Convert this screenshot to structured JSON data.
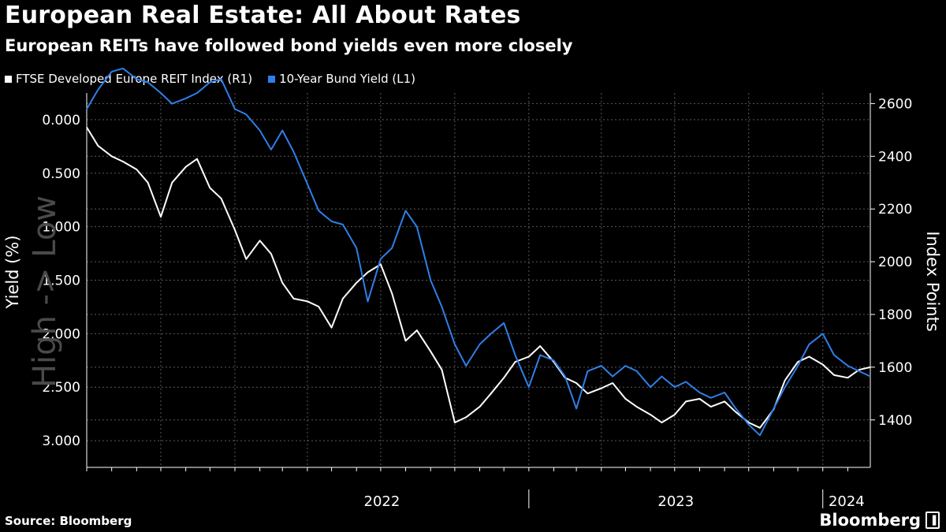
{
  "title": "European Real Estate: All About Rates",
  "subtitle": "European REITs have followed bond yields even more closely",
  "legend": [
    {
      "label": "FTSE Developed Europe REIT Index (R1)",
      "color": "#ffffff"
    },
    {
      "label": "10-Year Bund Yield (L1)",
      "color": "#2f7fe8"
    }
  ],
  "source": "Source: Bloomberg",
  "brand": "Bloomberg",
  "chart_data": {
    "type": "line",
    "x_range": [
      "2021-07-01",
      "2024-02-29"
    ],
    "x_labels": [
      {
        "label": "2022",
        "date": "2022-01-01"
      },
      {
        "label": "2023",
        "date": "2023-01-01"
      },
      {
        "label": "2024",
        "date": "2024-01-01"
      }
    ],
    "left_axis": {
      "label": "Yield (%)",
      "inverted": true,
      "annotation": "High -> Low",
      "ylim": [
        -0.25,
        3.25
      ],
      "ticks": [
        0,
        0.5,
        1,
        1.5,
        2,
        2.5,
        3
      ],
      "tick_labels": [
        "0.000",
        "0.500",
        "1.000",
        "1.500",
        "2.000",
        "2.500",
        "3.000"
      ]
    },
    "right_axis": {
      "label": "Index Points",
      "ylim": [
        1220,
        2640
      ],
      "ticks": [
        1400,
        1600,
        1800,
        2000,
        2200,
        2400,
        2600
      ],
      "tick_labels": [
        "1400",
        "1600",
        "1800",
        "2000",
        "2200",
        "2400",
        "2600"
      ]
    },
    "grid": true,
    "series": [
      {
        "name": "FTSE Developed Europe REIT Index (R1)",
        "axis": "right",
        "color": "#ffffff",
        "points": [
          [
            "2021-07-01",
            2510
          ],
          [
            "2021-07-15",
            2440
          ],
          [
            "2021-08-01",
            2400
          ],
          [
            "2021-08-15",
            2380
          ],
          [
            "2021-09-01",
            2350
          ],
          [
            "2021-09-15",
            2300
          ],
          [
            "2021-10-01",
            2170
          ],
          [
            "2021-10-15",
            2300
          ],
          [
            "2021-11-01",
            2360
          ],
          [
            "2021-11-15",
            2390
          ],
          [
            "2021-12-01",
            2280
          ],
          [
            "2021-12-15",
            2240
          ],
          [
            "2022-01-01",
            2120
          ],
          [
            "2022-01-15",
            2010
          ],
          [
            "2022-02-01",
            2080
          ],
          [
            "2022-02-15",
            2030
          ],
          [
            "2022-03-01",
            1920
          ],
          [
            "2022-03-15",
            1860
          ],
          [
            "2022-04-01",
            1850
          ],
          [
            "2022-04-15",
            1830
          ],
          [
            "2022-05-01",
            1750
          ],
          [
            "2022-05-15",
            1860
          ],
          [
            "2022-06-01",
            1920
          ],
          [
            "2022-06-15",
            1960
          ],
          [
            "2022-07-01",
            1990
          ],
          [
            "2022-07-15",
            1880
          ],
          [
            "2022-08-01",
            1700
          ],
          [
            "2022-08-15",
            1740
          ],
          [
            "2022-09-01",
            1660
          ],
          [
            "2022-09-15",
            1590
          ],
          [
            "2022-10-01",
            1390
          ],
          [
            "2022-10-15",
            1410
          ],
          [
            "2022-11-01",
            1450
          ],
          [
            "2022-11-15",
            1500
          ],
          [
            "2022-12-01",
            1560
          ],
          [
            "2022-12-15",
            1620
          ],
          [
            "2023-01-01",
            1640
          ],
          [
            "2023-01-15",
            1680
          ],
          [
            "2023-02-01",
            1620
          ],
          [
            "2023-02-15",
            1560
          ],
          [
            "2023-03-01",
            1540
          ],
          [
            "2023-03-15",
            1500
          ],
          [
            "2023-04-01",
            1520
          ],
          [
            "2023-04-15",
            1540
          ],
          [
            "2023-05-01",
            1480
          ],
          [
            "2023-05-15",
            1450
          ],
          [
            "2023-06-01",
            1420
          ],
          [
            "2023-06-15",
            1390
          ],
          [
            "2023-07-01",
            1420
          ],
          [
            "2023-07-15",
            1470
          ],
          [
            "2023-08-01",
            1480
          ],
          [
            "2023-08-15",
            1450
          ],
          [
            "2023-09-01",
            1470
          ],
          [
            "2023-09-15",
            1430
          ],
          [
            "2023-10-01",
            1390
          ],
          [
            "2023-10-15",
            1370
          ],
          [
            "2023-11-01",
            1440
          ],
          [
            "2023-11-15",
            1550
          ],
          [
            "2023-12-01",
            1620
          ],
          [
            "2023-12-15",
            1640
          ],
          [
            "2024-01-01",
            1610
          ],
          [
            "2024-01-15",
            1570
          ],
          [
            "2024-02-01",
            1560
          ],
          [
            "2024-02-15",
            1590
          ],
          [
            "2024-02-29",
            1600
          ]
        ]
      },
      {
        "name": "10-Year Bund Yield (L1)",
        "axis": "left",
        "color": "#2f7fe8",
        "points": [
          [
            "2021-07-01",
            -0.1
          ],
          [
            "2021-07-15",
            -0.28
          ],
          [
            "2021-08-01",
            -0.45
          ],
          [
            "2021-08-15",
            -0.48
          ],
          [
            "2021-09-01",
            -0.38
          ],
          [
            "2021-09-15",
            -0.35
          ],
          [
            "2021-10-01",
            -0.25
          ],
          [
            "2021-10-15",
            -0.15
          ],
          [
            "2021-11-01",
            -0.2
          ],
          [
            "2021-11-15",
            -0.25
          ],
          [
            "2021-12-01",
            -0.35
          ],
          [
            "2021-12-15",
            -0.38
          ],
          [
            "2022-01-01",
            -0.1
          ],
          [
            "2022-01-15",
            -0.05
          ],
          [
            "2022-02-01",
            0.1
          ],
          [
            "2022-02-15",
            0.28
          ],
          [
            "2022-03-01",
            0.1
          ],
          [
            "2022-03-15",
            0.3
          ],
          [
            "2022-04-01",
            0.6
          ],
          [
            "2022-04-15",
            0.85
          ],
          [
            "2022-05-01",
            0.95
          ],
          [
            "2022-05-15",
            0.98
          ],
          [
            "2022-06-01",
            1.2
          ],
          [
            "2022-06-15",
            1.7
          ],
          [
            "2022-07-01",
            1.3
          ],
          [
            "2022-07-15",
            1.2
          ],
          [
            "2022-08-01",
            0.85
          ],
          [
            "2022-08-15",
            1.0
          ],
          [
            "2022-09-01",
            1.5
          ],
          [
            "2022-09-15",
            1.75
          ],
          [
            "2022-10-01",
            2.1
          ],
          [
            "2022-10-15",
            2.3
          ],
          [
            "2022-11-01",
            2.1
          ],
          [
            "2022-11-15",
            2.0
          ],
          [
            "2022-12-01",
            1.9
          ],
          [
            "2022-12-15",
            2.2
          ],
          [
            "2023-01-01",
            2.5
          ],
          [
            "2023-01-15",
            2.2
          ],
          [
            "2023-02-01",
            2.25
          ],
          [
            "2023-02-15",
            2.4
          ],
          [
            "2023-03-01",
            2.7
          ],
          [
            "2023-03-15",
            2.35
          ],
          [
            "2023-04-01",
            2.3
          ],
          [
            "2023-04-15",
            2.4
          ],
          [
            "2023-05-01",
            2.3
          ],
          [
            "2023-05-15",
            2.35
          ],
          [
            "2023-06-01",
            2.5
          ],
          [
            "2023-06-15",
            2.4
          ],
          [
            "2023-07-01",
            2.5
          ],
          [
            "2023-07-15",
            2.45
          ],
          [
            "2023-08-01",
            2.55
          ],
          [
            "2023-08-15",
            2.6
          ],
          [
            "2023-09-01",
            2.55
          ],
          [
            "2023-09-15",
            2.7
          ],
          [
            "2023-10-01",
            2.85
          ],
          [
            "2023-10-15",
            2.95
          ],
          [
            "2023-11-01",
            2.7
          ],
          [
            "2023-11-15",
            2.5
          ],
          [
            "2023-12-01",
            2.3
          ],
          [
            "2023-12-15",
            2.1
          ],
          [
            "2024-01-01",
            2.0
          ],
          [
            "2024-01-15",
            2.2
          ],
          [
            "2024-02-01",
            2.3
          ],
          [
            "2024-02-15",
            2.35
          ],
          [
            "2024-02-29",
            2.4
          ]
        ]
      }
    ]
  }
}
